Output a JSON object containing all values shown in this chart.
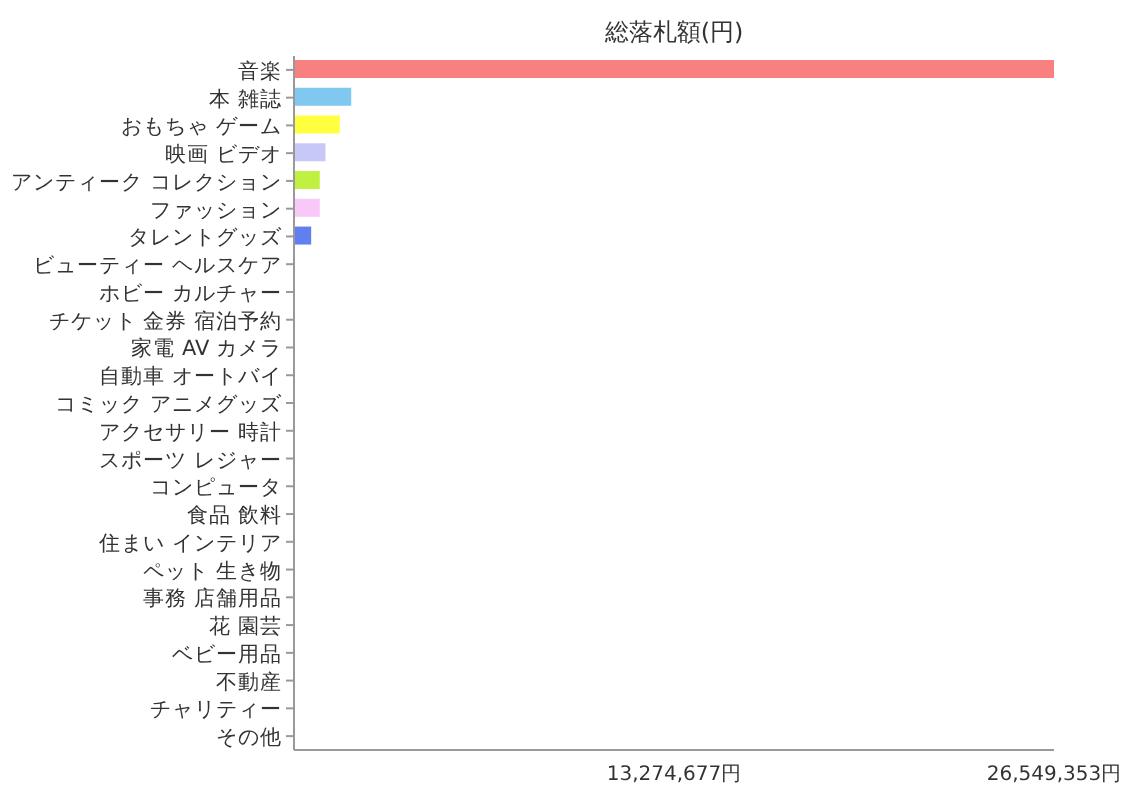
{
  "chart_data": {
    "type": "bar",
    "orientation": "horizontal",
    "title": "総落札額(円)",
    "categories": [
      "音楽",
      "本 雑誌",
      "おもちゃ ゲーム",
      "映画 ビデオ",
      "アンティーク コレクション",
      "ファッション",
      "タレントグッズ",
      "ビューティー ヘルスケア",
      "ホビー カルチャー",
      "チケット 金券 宿泊予約",
      "家電 AV カメラ",
      "自動車 オートバイ",
      "コミック アニメグッズ",
      "アクセサリー 時計",
      "スポーツ レジャー",
      "コンピュータ",
      "食品 飲料",
      "住まい インテリア",
      "ペット 生き物",
      "事務 店舗用品",
      "花 園芸",
      "ベビー用品",
      "不動産",
      "チャリティー",
      "その他"
    ],
    "values": [
      26549353,
      2000000,
      1600000,
      1100000,
      900000,
      900000,
      600000,
      0,
      0,
      0,
      0,
      0,
      0,
      0,
      0,
      0,
      0,
      0,
      0,
      0,
      0,
      0,
      0,
      0,
      0
    ],
    "colors": [
      "#f88080",
      "#80c8f0",
      "#ffff40",
      "#c8c8f8",
      "#c0f040",
      "#f8c8f8",
      "#6080f0",
      null,
      null,
      null,
      null,
      null,
      null,
      null,
      null,
      null,
      null,
      null,
      null,
      null,
      null,
      null,
      null,
      null,
      null
    ],
    "xlim": [
      0,
      26549353
    ],
    "xticks": [
      {
        "value": 13274677,
        "label": "13,274,677円"
      },
      {
        "value": 26549353,
        "label": "26,549,353円"
      }
    ],
    "grid": false
  }
}
